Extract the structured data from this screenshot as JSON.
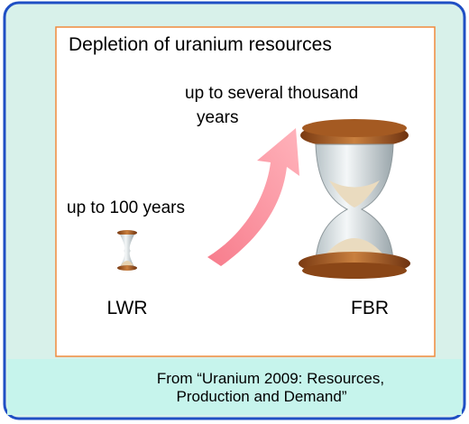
{
  "title": "Depletion of uranium resources",
  "short_label": "up to 100 years",
  "long_label": [
    "up to several thousand",
    "years"
  ],
  "lwr": "LWR",
  "fbr": "FBR",
  "source": [
    "From “Uranium 2009: Resources,",
    "Production and Demand”"
  ]
}
